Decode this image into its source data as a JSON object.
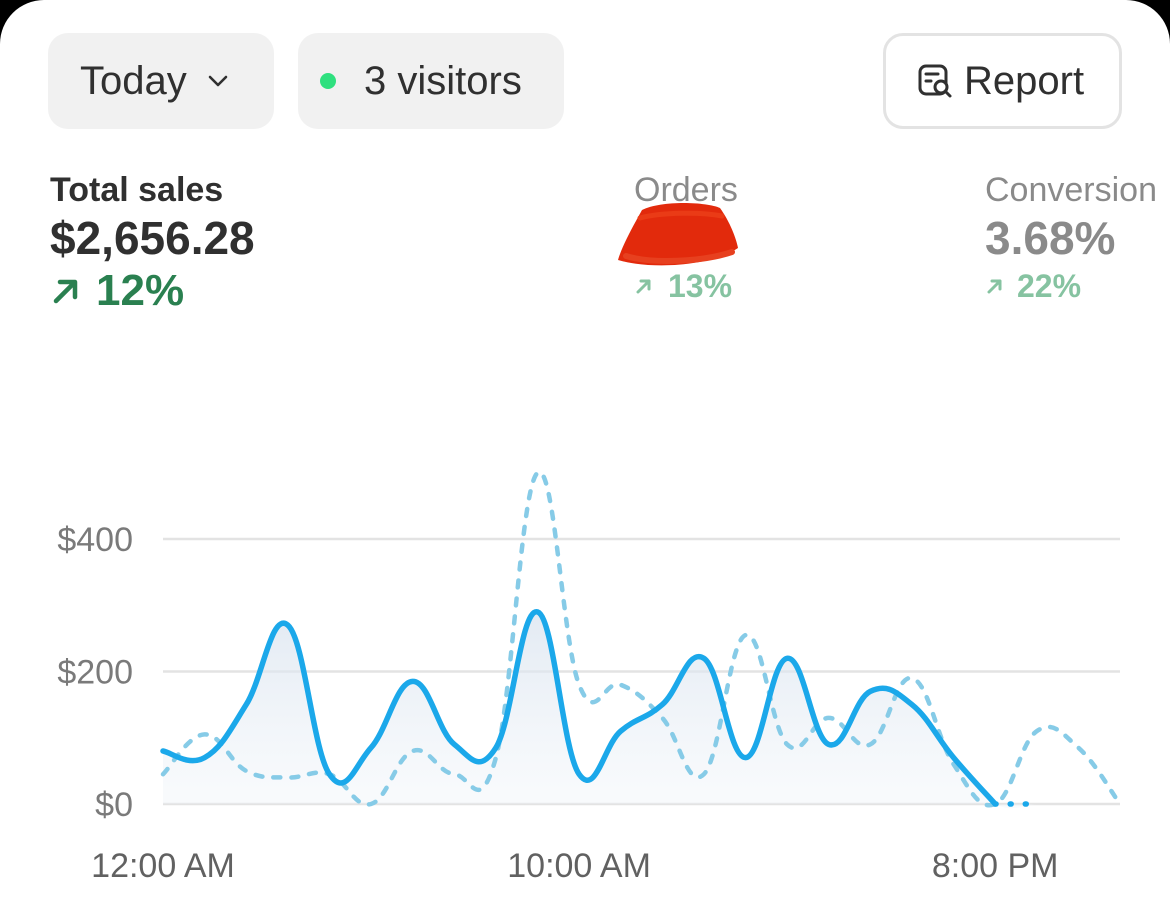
{
  "filters": {
    "date_range": "Today",
    "visitors": "3 visitors",
    "report_label": "Report"
  },
  "metrics": {
    "total_sales": {
      "label": "Total sales",
      "value": "$2,656.28",
      "change": "12%"
    },
    "orders": {
      "label": "Orders",
      "value": "",
      "change": "13%"
    },
    "conversion": {
      "label": "Conversion",
      "value": "3.68%",
      "change": "22%"
    }
  },
  "colors": {
    "current_line": "#1ba8ea",
    "comparison_line": "#86cbe7",
    "positive": "#2a8050",
    "live_dot": "#2fe07f"
  },
  "chart_data": {
    "type": "line",
    "x": [
      "12:00 AM",
      "1:00 AM",
      "2:00 AM",
      "3:00 AM",
      "4:00 AM",
      "5:00 AM",
      "6:00 AM",
      "7:00 AM",
      "8:00 AM",
      "9:00 AM",
      "10:00 AM",
      "11:00 AM",
      "12:00 PM",
      "1:00 PM",
      "2:00 PM",
      "3:00 PM",
      "4:00 PM",
      "5:00 PM",
      "6:00 PM",
      "7:00 PM",
      "8:00 PM",
      "9:00 PM",
      "10:00 PM",
      "11:00 PM"
    ],
    "xtick_labels": [
      "12:00 AM",
      "10:00 AM",
      "8:00 PM"
    ],
    "ytick_labels": [
      "$400",
      "$200",
      "$0"
    ],
    "ylim": [
      0,
      400
    ],
    "series": [
      {
        "values": [
          80,
          70,
          150,
          270,
          45,
          85,
          185,
          90,
          85,
          290,
          45,
          110,
          150,
          220,
          70,
          220,
          90,
          170,
          150,
          70,
          0,
          0,
          null,
          null
        ]
      },
      {
        "values": [
          45,
          105,
          50,
          40,
          45,
          0,
          80,
          45,
          70,
          500,
          180,
          180,
          130,
          45,
          255,
          90,
          130,
          90,
          190,
          60,
          0,
          110,
          85,
          0
        ]
      }
    ]
  }
}
